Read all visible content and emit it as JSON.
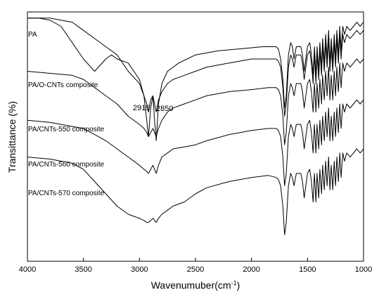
{
  "chart_data": {
    "type": "line",
    "xlabel": "Wavenumuber(cm",
    "xlabel_sup": "-1",
    "xlabel_close": ")",
    "ylabel": "Transittance (%)",
    "xlim": [
      4000,
      1000
    ],
    "x_reversed": true,
    "xticks": [
      4000,
      3500,
      3000,
      2500,
      2000,
      1500,
      1000
    ],
    "yticks_shown": false,
    "grid": false,
    "legend": "inline labels",
    "annotations": [
      "2919",
      "2850"
    ],
    "series": [
      {
        "name": "PA",
        "x": [
          4000,
          3900,
          3800,
          3700,
          3600,
          3500,
          3400,
          3300,
          3250,
          3200,
          3100,
          3050,
          3000,
          2960,
          2935,
          2919,
          2900,
          2880,
          2865,
          2850,
          2830,
          2800,
          2750,
          2650,
          2500,
          2300,
          2100,
          1900,
          1780,
          1760,
          1740,
          1720,
          1705,
          1690,
          1670,
          1650,
          1635,
          1620,
          1600,
          1560,
          1545,
          1530,
          1515,
          1500,
          1480,
          1465,
          1450,
          1438,
          1425,
          1415,
          1400,
          1390,
          1375,
          1365,
          1350,
          1338,
          1325,
          1312,
          1300,
          1288,
          1275,
          1262,
          1250,
          1238,
          1225,
          1212,
          1200,
          1185,
          1170,
          1150,
          1120,
          1090,
          1060,
          1030,
          1000
        ],
        "y": [
          99,
          99,
          98.5,
          97,
          93,
          89,
          86,
          89,
          90,
          89,
          88,
          86,
          84,
          80,
          74,
          70,
          77,
          80,
          74,
          69,
          78,
          83,
          86,
          88,
          90,
          91,
          91.5,
          92,
          92,
          91.5,
          89,
          84,
          77,
          80,
          90,
          93,
          92,
          89,
          92,
          92,
          90,
          86,
          89,
          92,
          93,
          90,
          85,
          92,
          85,
          92,
          86,
          93,
          87,
          94,
          88,
          95,
          89,
          96,
          88,
          94,
          88,
          95,
          89,
          96,
          90,
          97,
          91,
          97,
          95,
          97,
          96,
          97,
          98,
          97,
          98
        ]
      },
      {
        "name": "PA/O-CNTs composite",
        "x": [
          4000,
          3800,
          3600,
          3500,
          3400,
          3300,
          3200,
          3100,
          3000,
          2960,
          2935,
          2919,
          2900,
          2880,
          2865,
          2850,
          2830,
          2800,
          2750,
          2700,
          2600,
          2500,
          2400,
          2200,
          2000,
          1850,
          1780,
          1760,
          1740,
          1720,
          1705,
          1690,
          1670,
          1650,
          1635,
          1620,
          1600,
          1560,
          1545,
          1530,
          1515,
          1500,
          1480,
          1465,
          1450,
          1438,
          1425,
          1415,
          1400,
          1390,
          1375,
          1365,
          1350,
          1338,
          1325,
          1312,
          1300,
          1288,
          1275,
          1262,
          1250,
          1238,
          1225,
          1212,
          1200,
          1185,
          1170,
          1150,
          1120,
          1090,
          1060,
          1030,
          1000
        ],
        "y": [
          99,
          99,
          98,
          96,
          94,
          92,
          90,
          86,
          83,
          80,
          78,
          76,
          79,
          80,
          78,
          76,
          79,
          81,
          83,
          84,
          85,
          86,
          87,
          88,
          89,
          89,
          89,
          88.5,
          87,
          82,
          75,
          78,
          87,
          90,
          89,
          87,
          90,
          90,
          88,
          84,
          87,
          90,
          91,
          88,
          83,
          90,
          83,
          90,
          84,
          91,
          85,
          92,
          86,
          93,
          87,
          94,
          86,
          92,
          86,
          93,
          87,
          94,
          88,
          95,
          89,
          95,
          93,
          95,
          94,
          95,
          96,
          95,
          96
        ]
      },
      {
        "name": "PA/CNTs-550 composite",
        "x": [
          4000,
          3800,
          3600,
          3500,
          3400,
          3300,
          3200,
          3100,
          3000,
          2960,
          2935,
          2919,
          2900,
          2880,
          2865,
          2850,
          2830,
          2800,
          2750,
          2700,
          2600,
          2500,
          2400,
          2200,
          2000,
          1850,
          1780,
          1760,
          1740,
          1720,
          1705,
          1690,
          1670,
          1650,
          1635,
          1620,
          1600,
          1560,
          1545,
          1530,
          1515,
          1500,
          1480,
          1465,
          1450,
          1438,
          1425,
          1415,
          1400,
          1390,
          1375,
          1365,
          1350,
          1338,
          1325,
          1312,
          1300,
          1288,
          1275,
          1262,
          1250,
          1238,
          1225,
          1212,
          1200,
          1185,
          1170,
          1150,
          1120,
          1090,
          1060,
          1030,
          1000
        ],
        "y": [
          86,
          85.5,
          85,
          84,
          82,
          80,
          78,
          75,
          73,
          72,
          71,
          70,
          71,
          72,
          71,
          70,
          72,
          74,
          76,
          77,
          78,
          79,
          80,
          81,
          81.5,
          82,
          82,
          81.5,
          80,
          75,
          68,
          71,
          80,
          83,
          82,
          80,
          83,
          83,
          81,
          77,
          80,
          83,
          84,
          81,
          76,
          83,
          76,
          83,
          77,
          84,
          78,
          85,
          79,
          86,
          80,
          87,
          79,
          85,
          79,
          86,
          80,
          87,
          81,
          88,
          82,
          88,
          86,
          88,
          87,
          88,
          89,
          88,
          89
        ]
      },
      {
        "name": "PA/CNTs-560 composite",
        "x": [
          4000,
          3800,
          3600,
          3500,
          3400,
          3300,
          3200,
          3100,
          3000,
          2960,
          2935,
          2919,
          2900,
          2880,
          2865,
          2850,
          2830,
          2800,
          2750,
          2700,
          2600,
          2500,
          2400,
          2200,
          2000,
          1850,
          1780,
          1760,
          1740,
          1720,
          1705,
          1690,
          1670,
          1650,
          1635,
          1620,
          1600,
          1560,
          1545,
          1530,
          1515,
          1500,
          1480,
          1465,
          1450,
          1438,
          1425,
          1415,
          1400,
          1390,
          1375,
          1365,
          1350,
          1338,
          1325,
          1312,
          1300,
          1288,
          1275,
          1262,
          1250,
          1238,
          1225,
          1212,
          1200,
          1185,
          1170,
          1150,
          1120,
          1090,
          1060,
          1030,
          1000
        ],
        "y": [
          74,
          73.5,
          72.5,
          72,
          70.5,
          69,
          67,
          65,
          63,
          62,
          61.5,
          61,
          62,
          63,
          62,
          61,
          63,
          65,
          66,
          67,
          67.5,
          68,
          69,
          70.5,
          71.5,
          72,
          72,
          71.5,
          70,
          65,
          58,
          61,
          70,
          73,
          72,
          70,
          73,
          73,
          71,
          67,
          70,
          73,
          74,
          71,
          66,
          73,
          66,
          73,
          67,
          74,
          68,
          75,
          69,
          76,
          70,
          77,
          69,
          75,
          69,
          76,
          70,
          77,
          71,
          78,
          72,
          78,
          76,
          78,
          77,
          78,
          79,
          78,
          79
        ]
      },
      {
        "name": "PA/CNTs-570 composite",
        "x": [
          4000,
          3800,
          3600,
          3500,
          3400,
          3300,
          3200,
          3100,
          3000,
          2960,
          2935,
          2919,
          2900,
          2880,
          2865,
          2850,
          2830,
          2800,
          2750,
          2700,
          2600,
          2500,
          2400,
          2200,
          2000,
          1850,
          1780,
          1760,
          1740,
          1720,
          1705,
          1690,
          1670,
          1650,
          1635,
          1620,
          1600,
          1560,
          1545,
          1530,
          1515,
          1500,
          1480,
          1465,
          1450,
          1438,
          1425,
          1415,
          1400,
          1390,
          1375,
          1365,
          1350,
          1338,
          1325,
          1312,
          1300,
          1288,
          1275,
          1262,
          1250,
          1238,
          1225,
          1212,
          1200,
          1185,
          1170,
          1150,
          1120,
          1090,
          1060,
          1030,
          1000
        ],
        "y": [
          65,
          64.5,
          63.5,
          62,
          59,
          56,
          53,
          51,
          50,
          49.5,
          49,
          49,
          49.5,
          50,
          49.5,
          49,
          50,
          51,
          52,
          53,
          54,
          56,
          57.5,
          59,
          60,
          60.5,
          60,
          59.5,
          58,
          53,
          46,
          49,
          58,
          61,
          60,
          58,
          61,
          61,
          59,
          55,
          58,
          61,
          62,
          59,
          54,
          61,
          54,
          61,
          55,
          62,
          56,
          63,
          57,
          64,
          58,
          65,
          57,
          63,
          57,
          64,
          58,
          65,
          59,
          66,
          60,
          66,
          64,
          66,
          65,
          66,
          67,
          66,
          67
        ]
      }
    ]
  }
}
